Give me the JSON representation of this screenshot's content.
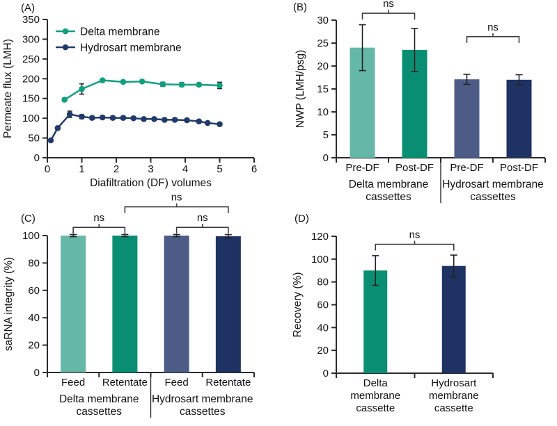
{
  "panels": {
    "a_label": "(A)",
    "b_label": "(B)",
    "c_label": "(C)",
    "d_label": "(D)"
  },
  "colors": {
    "teal_light": "#65b7a7",
    "teal_dark": "#0a8e73",
    "slate_blue": "#4d5c87",
    "navy_dark": "#1e3263",
    "line_teal": "#10a080",
    "line_navy": "#213a6c",
    "axis": "#2b2b2b",
    "text": "#111111",
    "bracket": "#3a3a3a",
    "errorbar": "#222222"
  },
  "chart_data": [
    {
      "id": "A",
      "type": "line",
      "title": "",
      "xlabel": "Diafiltration (DF) volumes",
      "ylabel": "Permeate flux (LMH)",
      "xlim": [
        0,
        6
      ],
      "ylim": [
        0,
        350
      ],
      "xticks": [
        0,
        1,
        2,
        3,
        4,
        5,
        6
      ],
      "yticks": [
        0,
        50,
        100,
        150,
        200,
        250,
        300,
        350
      ],
      "legend_position": "top-left-inside",
      "series": [
        {
          "name": "Delta membrane",
          "color_key": "line_teal",
          "x": [
            0.5,
            1.0,
            1.6,
            2.2,
            2.75,
            3.35,
            3.9,
            4.4,
            5.0
          ],
          "y": [
            147,
            174,
            196,
            192,
            193,
            186,
            185,
            185,
            183
          ],
          "yerr": [
            4,
            13,
            3,
            3,
            3,
            5,
            5,
            4,
            8
          ]
        },
        {
          "name": "Hydrosart membrane",
          "color_key": "line_navy",
          "x": [
            0.1,
            0.3,
            0.65,
            1.0,
            1.3,
            1.6,
            1.9,
            2.2,
            2.5,
            2.8,
            3.1,
            3.4,
            3.7,
            4.05,
            4.4,
            4.65,
            5.0
          ],
          "y": [
            44,
            75,
            110,
            104,
            101,
            102,
            101,
            101,
            100,
            98,
            98,
            96,
            96,
            95,
            92,
            88,
            85
          ],
          "yerr": [
            3,
            3,
            8,
            5,
            4,
            4,
            4,
            4,
            3,
            4,
            3,
            4,
            4,
            4,
            3,
            2,
            2
          ]
        }
      ]
    },
    {
      "id": "B",
      "type": "bar",
      "ylabel": "NWP (LMH/psg)",
      "ylim": [
        0,
        30
      ],
      "yticks": [
        0,
        5,
        10,
        15,
        20,
        25,
        30
      ],
      "bars": [
        {
          "label": "Pre-DF",
          "value": 24,
          "err": 5,
          "color_key": "teal_light"
        },
        {
          "label": "Post-DF",
          "value": 23.5,
          "err": 4.7,
          "color_key": "teal_dark"
        },
        {
          "label": "Pre-DF",
          "value": 17.1,
          "err": 1.1,
          "color_key": "slate_blue"
        },
        {
          "label": "Post-DF",
          "value": 17,
          "err": 1.1,
          "color_key": "navy_dark"
        }
      ],
      "groups": [
        {
          "label": "Delta membrane\ncassettes",
          "from": 0,
          "to": 1
        },
        {
          "label": "Hydrosart membrane\ncassettes",
          "from": 2,
          "to": 3
        }
      ],
      "ns_brackets": [
        {
          "from": 0,
          "to": 1,
          "label": "ns",
          "at": 31.5
        },
        {
          "from": 2,
          "to": 3,
          "label": "ns",
          "at": 26.4
        }
      ]
    },
    {
      "id": "C",
      "type": "bar",
      "ylabel": "saRNA integrity (%)",
      "ylim": [
        0,
        100
      ],
      "yticks": [
        0,
        20,
        40,
        60,
        80,
        100
      ],
      "bars": [
        {
          "label": "Feed",
          "value": 100,
          "err": 0.8,
          "color_key": "teal_light"
        },
        {
          "label": "Retentate",
          "value": 100,
          "err": 0.8,
          "color_key": "teal_dark"
        },
        {
          "label": "Feed",
          "value": 100,
          "err": 0.8,
          "color_key": "slate_blue"
        },
        {
          "label": "Retentate",
          "value": 99.5,
          "err": 1.2,
          "color_key": "navy_dark"
        }
      ],
      "groups": [
        {
          "label": "Delta membrane\ncassettes",
          "from": 0,
          "to": 1
        },
        {
          "label": "Hydrosart membrane\ncassettes",
          "from": 2,
          "to": 3
        }
      ],
      "ns_brackets": [
        {
          "from": 0,
          "to": 1,
          "label": "ns",
          "at": 106
        },
        {
          "from": 2,
          "to": 3,
          "label": "ns",
          "at": 106
        },
        {
          "from": 1,
          "to": 3,
          "label": "ns",
          "at": 121
        }
      ]
    },
    {
      "id": "D",
      "type": "bar",
      "ylabel": "Recovery (%)",
      "ylim": [
        0,
        120
      ],
      "yticks": [
        0,
        20,
        40,
        60,
        80,
        100,
        120
      ],
      "bars": [
        {
          "label": "Delta\nmembrane\ncassette",
          "value": 90,
          "err": 13,
          "color_key": "teal_dark"
        },
        {
          "label": "Hydrosart\nmembrane\ncassette",
          "value": 94,
          "err": 9.5,
          "color_key": "navy_dark"
        }
      ],
      "groups": [],
      "ns_brackets": [
        {
          "from": 0,
          "to": 1,
          "label": "ns",
          "at": 113
        }
      ]
    }
  ]
}
